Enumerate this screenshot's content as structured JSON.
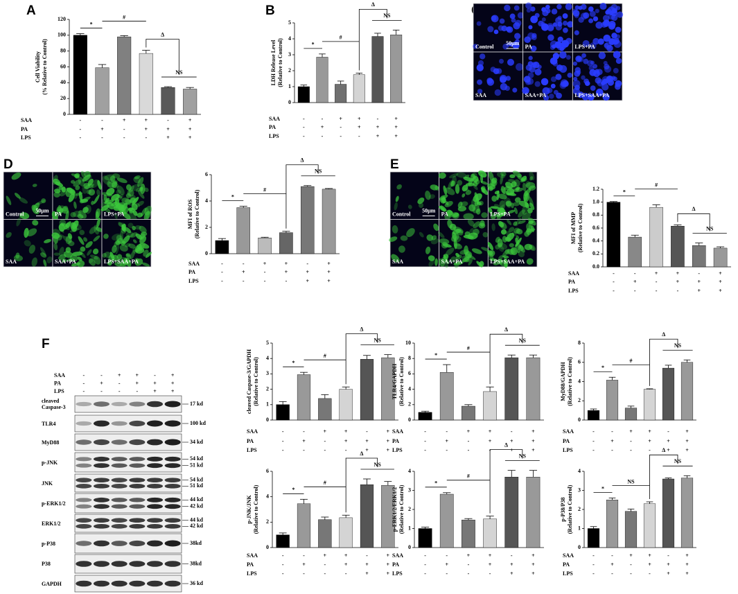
{
  "figure": {
    "panels": [
      "A",
      "B",
      "C",
      "D",
      "E",
      "F"
    ],
    "micrographs": [
      {
        "labels": [
          "Control",
          "PA",
          "LPS+PA",
          "SAA",
          "SAA+PA",
          "LPS+SAA+PA"
        ],
        "scale": "50μm",
        "color": "#2a3cff"
      },
      {
        "labels": [
          "Control",
          "PA",
          "LPS+PA",
          "SAA",
          "SAA+PA",
          "LPS+SAA+PA"
        ],
        "scale": "50μm",
        "color": "#3cc83c"
      },
      {
        "labels": [
          "Control",
          "PA",
          "LPS+PA",
          "SAA",
          "SAA+PA",
          "LPS+SAA+PA"
        ],
        "scale": "50μm",
        "color": "#3cc83c"
      }
    ],
    "blot": {
      "treatments": [
        {
          "name": "SAA",
          "signs": [
            "-",
            "-",
            "+",
            "+",
            "-",
            "+"
          ]
        },
        {
          "name": "PA",
          "signs": [
            "-",
            "+",
            "-",
            "+",
            "+",
            "+"
          ]
        },
        {
          "name": "LPS",
          "signs": [
            "-",
            "-",
            "-",
            "-",
            "+",
            "+"
          ]
        }
      ],
      "rows": [
        {
          "name": "cleaved Caspase-3",
          "kd": [
            "17 kd"
          ]
        },
        {
          "name": "TLR4",
          "kd": [
            "100 kd"
          ]
        },
        {
          "name": "MyD88",
          "kd": [
            "34 kd"
          ]
        },
        {
          "name": "p-JNK",
          "kd": [
            "54 kd",
            "51 kd"
          ]
        },
        {
          "name": "JNK",
          "kd": [
            "54 kd",
            "51 kd"
          ]
        },
        {
          "name": "p-ERK1/2",
          "kd": [
            "44 kd",
            "42 kd"
          ]
        },
        {
          "name": "ERK1/2",
          "kd": [
            "44 kd",
            "42 kd"
          ]
        },
        {
          "name": "p-P38",
          "kd": [
            "38kd"
          ]
        },
        {
          "name": "P38",
          "kd": [
            "38kd"
          ]
        },
        {
          "name": "GAPDH",
          "kd": [
            "36 kd"
          ]
        }
      ]
    }
  },
  "chart_data": [
    {
      "type": "bar",
      "ylabel": [
        "Cell Viability",
        "(% Relative to Control)"
      ],
      "values": [
        100,
        59,
        98,
        77,
        34,
        32
      ],
      "errors": [
        2,
        4,
        1.5,
        4,
        1,
        2
      ],
      "colors": [
        "#000000",
        "#a0a0a0",
        "#808080",
        "#d9d9d9",
        "#595959",
        "#a0a0a0"
      ],
      "ylim": [
        0,
        120
      ],
      "yticks": [
        0,
        20,
        40,
        60,
        80,
        100,
        120
      ],
      "annotations": [
        "*",
        "#",
        "Δ",
        "NS"
      ],
      "treatments": [
        {
          "name": "SAA",
          "signs": [
            "-",
            "-",
            "+",
            "+",
            "-",
            "+"
          ]
        },
        {
          "name": "PA",
          "signs": [
            "-",
            "+",
            "-",
            "+",
            "+",
            "+"
          ]
        },
        {
          "name": "LPS",
          "signs": [
            "-",
            "-",
            "-",
            "-",
            "+",
            "+"
          ]
        }
      ]
    },
    {
      "type": "bar",
      "ylabel": [
        "LDH Release Level",
        "(Relative to Control)"
      ],
      "values": [
        1.0,
        2.85,
        1.15,
        1.75,
        4.15,
        4.25
      ],
      "errors": [
        0.1,
        0.2,
        0.2,
        0.1,
        0.2,
        0.3
      ],
      "colors": [
        "#000000",
        "#999999",
        "#707070",
        "#d4d4d4",
        "#555555",
        "#999999"
      ],
      "ylim": [
        0,
        5
      ],
      "yticks": [
        0,
        1,
        2,
        3,
        4,
        5
      ],
      "annotations": [
        "*",
        "#",
        "Δ",
        "NS"
      ],
      "treatments": [
        {
          "name": "SAA",
          "signs": [
            "-",
            "-",
            "+",
            "+",
            "-",
            "+"
          ]
        },
        {
          "name": "PA",
          "signs": [
            "-",
            "+",
            "-",
            "+",
            "+",
            "+"
          ]
        },
        {
          "name": "LPS",
          "signs": [
            "-",
            "-",
            "-",
            "-",
            "+",
            "+"
          ]
        }
      ]
    },
    {
      "type": "bar",
      "ylabel": [
        "MFI of ROS",
        "(Relative to Control)"
      ],
      "values": [
        1.0,
        3.5,
        1.2,
        1.6,
        5.1,
        4.9
      ],
      "errors": [
        0.15,
        0.1,
        0.05,
        0.1,
        0.07,
        0.05
      ],
      "colors": [
        "#000000",
        "#999999",
        "#bbbbbb",
        "#666666",
        "#777777",
        "#999999"
      ],
      "ylim": [
        0,
        6
      ],
      "yticks": [
        0,
        2,
        4,
        6
      ],
      "annotations": [
        "*",
        "#",
        "Δ",
        "NS"
      ],
      "treatments": [
        {
          "name": "SAA",
          "signs": [
            "-",
            "-",
            "+",
            "+",
            "-",
            "+"
          ]
        },
        {
          "name": "PA",
          "signs": [
            "-",
            "+",
            "-",
            "+",
            "+",
            "+"
          ]
        },
        {
          "name": "LPS",
          "signs": [
            "-",
            "-",
            "-",
            "-",
            "+",
            "+"
          ]
        }
      ]
    },
    {
      "type": "bar",
      "ylabel": [
        "MFI of MMP",
        "(Relative to Control)"
      ],
      "values": [
        1.0,
        0.46,
        0.92,
        0.63,
        0.33,
        0.29
      ],
      "errors": [
        0.01,
        0.03,
        0.04,
        0.02,
        0.04,
        0.02
      ],
      "colors": [
        "#000000",
        "#888888",
        "#cccccc",
        "#555555",
        "#777777",
        "#999999"
      ],
      "ylim": [
        0,
        1.2
      ],
      "yticks": [
        {
          "value": 0,
          "label": "0.0"
        },
        0.2,
        0.4,
        0.6,
        0.8,
        {
          "value": 1,
          "label": "1.0"
        },
        1.2
      ],
      "annotations": [
        "*",
        "#",
        "Δ",
        "NS"
      ],
      "treatments": [
        {
          "name": "SAA",
          "signs": [
            "-",
            "-",
            "+",
            "+",
            "-",
            "+"
          ]
        },
        {
          "name": "PA",
          "signs": [
            "-",
            "+",
            "-",
            "+",
            "+",
            "+"
          ]
        },
        {
          "name": "LPS",
          "signs": [
            "-",
            "-",
            "-",
            "-",
            "+",
            "+"
          ]
        }
      ]
    },
    {
      "type": "bar",
      "ylabel": [
        "cleaved Caspase-3/GAPDH",
        "(Relative to Control)"
      ],
      "values": [
        1.0,
        2.95,
        1.4,
        2.0,
        3.95,
        4.05
      ],
      "errors": [
        0.2,
        0.15,
        0.25,
        0.15,
        0.25,
        0.2
      ],
      "colors": [
        "#000000",
        "#999999",
        "#777777",
        "#d4d4d4",
        "#555555",
        "#999999"
      ],
      "ylim": [
        0,
        5
      ],
      "yticks": [
        0,
        1,
        2,
        3,
        4,
        5
      ],
      "annotations": [
        "*",
        "#",
        "Δ",
        "NS"
      ],
      "treatments": [
        {
          "name": "SAA",
          "signs": [
            "-",
            "-",
            "+",
            "+",
            "-",
            "+"
          ]
        },
        {
          "name": "PA",
          "signs": [
            "-",
            "+",
            "-",
            "+",
            "+",
            "+"
          ]
        },
        {
          "name": "LPS",
          "signs": [
            "-",
            "-",
            "-",
            "-",
            "+",
            "+"
          ]
        }
      ]
    },
    {
      "type": "bar",
      "ylabel": [
        "TLR4/GAPDH",
        "(Relative to Control)"
      ],
      "values": [
        1.0,
        6.2,
        1.8,
        3.7,
        8.1,
        8.1
      ],
      "errors": [
        0.15,
        1.0,
        0.2,
        0.6,
        0.35,
        0.35
      ],
      "colors": [
        "#000000",
        "#999999",
        "#777777",
        "#d4d4d4",
        "#555555",
        "#999999"
      ],
      "ylim": [
        0,
        10
      ],
      "yticks": [
        0,
        2,
        4,
        6,
        8,
        10
      ],
      "annotations": [
        "*",
        "#",
        "Δ",
        "NS"
      ],
      "treatments": [
        {
          "name": "SAA",
          "signs": [
            "-",
            "-",
            "+",
            "+",
            "-",
            "+"
          ]
        },
        {
          "name": "PA",
          "signs": [
            "-",
            "+",
            "-",
            "+",
            "+",
            "+"
          ]
        },
        {
          "name": "LPS",
          "signs": [
            "-",
            "-",
            "-",
            "-",
            "+",
            "+"
          ]
        }
      ]
    },
    {
      "type": "bar",
      "ylabel": [
        "MyD88/GAPDH",
        "(Relative to Control)"
      ],
      "values": [
        1.0,
        4.15,
        1.25,
        3.2,
        5.4,
        6.0
      ],
      "errors": [
        0.15,
        0.3,
        0.2,
        0.05,
        0.3,
        0.25
      ],
      "colors": [
        "#000000",
        "#999999",
        "#777777",
        "#d4d4d4",
        "#555555",
        "#999999"
      ],
      "ylim": [
        0,
        8
      ],
      "yticks": [
        0,
        2,
        4,
        6,
        8
      ],
      "annotations": [
        "*",
        "#",
        "Δ",
        "NS"
      ],
      "treatments": [
        {
          "name": "SAA",
          "signs": [
            "-",
            "-",
            "+",
            "+",
            "-",
            "+"
          ]
        },
        {
          "name": "PA",
          "signs": [
            "-",
            "+",
            "-",
            "+",
            "+",
            "+"
          ]
        },
        {
          "name": "LPS",
          "signs": [
            "-",
            "-",
            "-",
            "-",
            "+",
            "+"
          ]
        }
      ]
    },
    {
      "type": "bar",
      "ylabel": [
        "p-JNK/JNK",
        "(Relative to Control)"
      ],
      "values": [
        1.0,
        3.45,
        2.2,
        2.35,
        4.95,
        4.9
      ],
      "errors": [
        0.15,
        0.35,
        0.2,
        0.2,
        0.45,
        0.3
      ],
      "colors": [
        "#000000",
        "#999999",
        "#777777",
        "#d4d4d4",
        "#555555",
        "#999999"
      ],
      "ylim": [
        0,
        6
      ],
      "yticks": [
        0,
        2,
        4,
        6
      ],
      "annotations": [
        "*",
        "#",
        "Δ",
        "NS"
      ],
      "treatments": [
        {
          "name": "SAA",
          "signs": [
            "-",
            "-",
            "+",
            "+",
            "-",
            "+"
          ]
        },
        {
          "name": "PA",
          "signs": [
            "-",
            "+",
            "-",
            "+",
            "+",
            "+"
          ]
        },
        {
          "name": "LPS",
          "signs": [
            "-",
            "-",
            "-",
            "-",
            "+",
            "+"
          ]
        }
      ]
    },
    {
      "type": "bar",
      "ylabel": [
        "p-ERK1/2/ERK1/2",
        "(Relative to Control)"
      ],
      "values": [
        1.0,
        2.8,
        1.45,
        1.5,
        3.7,
        3.7
      ],
      "errors": [
        0.07,
        0.08,
        0.07,
        0.15,
        0.35,
        0.35
      ],
      "colors": [
        "#000000",
        "#999999",
        "#777777",
        "#d4d4d4",
        "#555555",
        "#999999"
      ],
      "ylim": [
        0,
        4
      ],
      "yticks": [
        0,
        1,
        2,
        3,
        4
      ],
      "annotations": [
        "*",
        "#",
        "Δ",
        "NS"
      ],
      "treatments": [
        {
          "name": "SAA",
          "signs": [
            "-",
            "-",
            "+",
            "+",
            "-",
            "+"
          ]
        },
        {
          "name": "PA",
          "signs": [
            "-",
            "+",
            "-",
            "+",
            "+",
            "+"
          ]
        },
        {
          "name": "LPS",
          "signs": [
            "-",
            "-",
            "-",
            "-",
            "+",
            "+"
          ]
        }
      ]
    },
    {
      "type": "bar",
      "ylabel": [
        "p-P38/P38",
        "(Relative to Control)"
      ],
      "values": [
        1.0,
        2.5,
        1.9,
        2.3,
        3.6,
        3.65
      ],
      "errors": [
        0.1,
        0.1,
        0.12,
        0.1,
        0.05,
        0.12
      ],
      "colors": [
        "#000000",
        "#999999",
        "#777777",
        "#d4d4d4",
        "#555555",
        "#999999"
      ],
      "ylim": [
        0,
        4
      ],
      "yticks": [
        0,
        1,
        2,
        3,
        4
      ],
      "annotations": [
        "*",
        "NS",
        "Δ",
        "NS"
      ],
      "treatments": [
        {
          "name": "SAA",
          "signs": [
            "-",
            "-",
            "+",
            "+",
            "-",
            "+"
          ]
        },
        {
          "name": "PA",
          "signs": [
            "-",
            "+",
            "-",
            "+",
            "+",
            "+"
          ]
        },
        {
          "name": "LPS",
          "signs": [
            "-",
            "-",
            "-",
            "-",
            "+",
            "+"
          ]
        }
      ]
    }
  ]
}
